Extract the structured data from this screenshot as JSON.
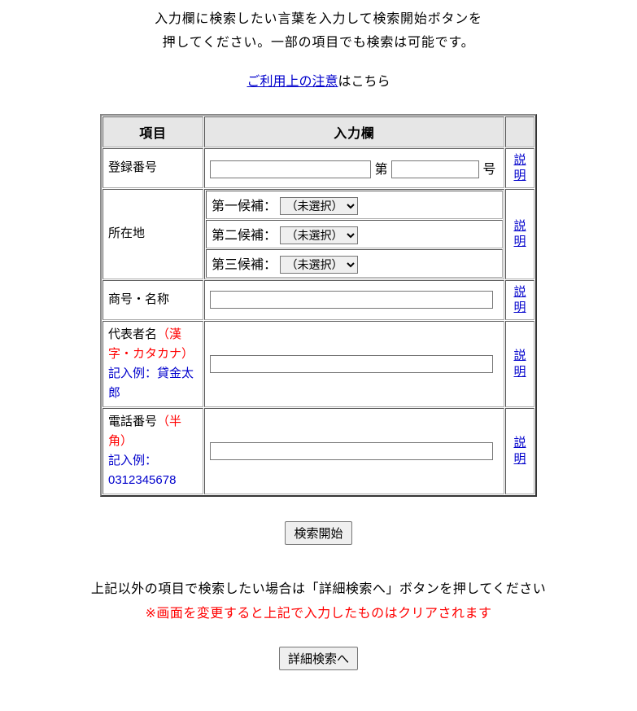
{
  "intro": {
    "line1": "入力欄に検索したい言葉を入力して検索開始ボタンを",
    "line2": "押してください。一部の項目でも検索は可能です。"
  },
  "notice": {
    "link_text": "ご利用上の注意",
    "suffix": "はこちら"
  },
  "table": {
    "header_item": "項目",
    "header_input": "入力欄",
    "explain_label": "説明",
    "rows": {
      "reg_no": {
        "label": "登録番号",
        "middle": "第",
        "suffix": "号"
      },
      "location": {
        "label": "所在地",
        "cand1_label": "第一候補：",
        "cand2_label": "第二候補：",
        "cand3_label": "第三候補：",
        "select_unselected": "（未選択）"
      },
      "company": {
        "label": "商号・名称"
      },
      "rep": {
        "label_main": "代表者名",
        "label_red": "（漢字・カタカナ）",
        "label_blue": "記入例：貸金太郎"
      },
      "phone": {
        "label_main": "電話番号",
        "label_red": "（半角）",
        "label_blue1": "記入例：",
        "label_blue2": "0312345678"
      }
    }
  },
  "buttons": {
    "search_start": "検索開始",
    "to_detail": "詳細検索へ"
  },
  "footer": {
    "line1": "上記以外の項目で検索したい場合は「詳細検索へ」ボタンを押してください",
    "line2": "※画面を変更すると上記で入力したものはクリアされます"
  }
}
